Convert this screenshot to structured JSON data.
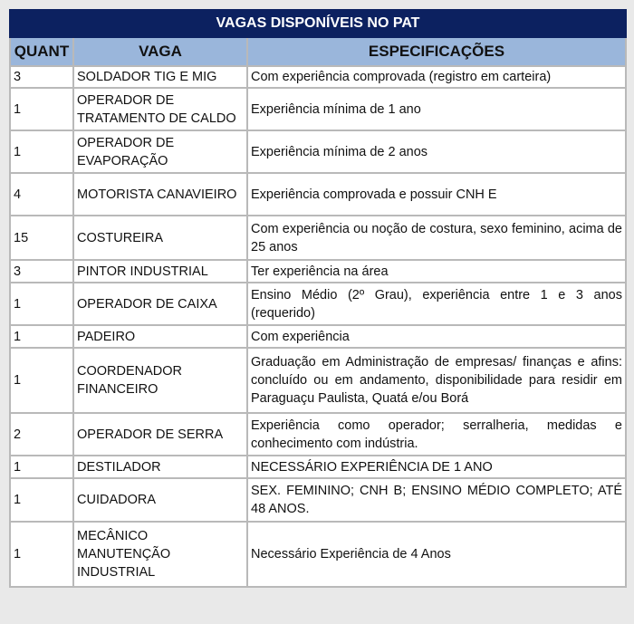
{
  "title": "VAGAS DISPONÍVEIS NO PAT",
  "columns": [
    "QUANT",
    "VAGA",
    "ESPECIFICAÇÕES"
  ],
  "rows": [
    {
      "quant": "3",
      "vaga": "SOLDADOR TIG E MIG",
      "spec": "Com experiência comprovada (registro em carteira)"
    },
    {
      "quant": "1",
      "vaga": "OPERADOR DE TRATAMENTO DE CALDO",
      "spec": "Experiência mínima de 1 ano"
    },
    {
      "quant": "1",
      "vaga": "OPERADOR DE EVAPORAÇÃO",
      "spec": "Experiência mínima de 2 anos"
    },
    {
      "quant": "4",
      "vaga": "MOTORISTA CANAVIEIRO",
      "spec": "Experiência comprovada e possuir CNH E"
    },
    {
      "quant": "15",
      "vaga": "COSTUREIRA",
      "spec": "Com experiência ou noção de costura, sexo feminino, acima de 25 anos"
    },
    {
      "quant": "3",
      "vaga": "PINTOR INDUSTRIAL",
      "spec": "Ter experiência na área"
    },
    {
      "quant": "1",
      "vaga": "OPERADOR DE CAIXA",
      "spec": "Ensino Médio (2º Grau), experiência entre 1 e 3 anos (requerido)"
    },
    {
      "quant": "1",
      "vaga": "PADEIRO",
      "spec": "Com experiência"
    },
    {
      "quant": "1",
      "vaga": "COORDENADOR FINANCEIRO",
      "spec": "Graduação em Administração de empresas/ finanças e afins: concluído ou em andamento, disponibilidade para residir em Paraguaçu Paulista, Quatá e/ou Borá"
    },
    {
      "quant": "2",
      "vaga": "OPERADOR DE SERRA",
      "spec": "Experiência como operador; serralheria, medidas e conhecimento com indústria."
    },
    {
      "quant": "1",
      "vaga": "DESTILADOR",
      "spec": "NECESSÁRIO EXPERIÊNCIA DE 1 ANO"
    },
    {
      "quant": "1",
      "vaga": "CUIDADORA",
      "spec": "SEX. FEMININO; CNH B; ENSINO MÉDIO COMPLETO; ATÉ 48 ANOS."
    },
    {
      "quant": "1",
      "vaga": "MECÂNICO MANUTENÇÃO INDUSTRIAL",
      "spec": "Necessário Experiência de 4 Anos"
    }
  ]
}
